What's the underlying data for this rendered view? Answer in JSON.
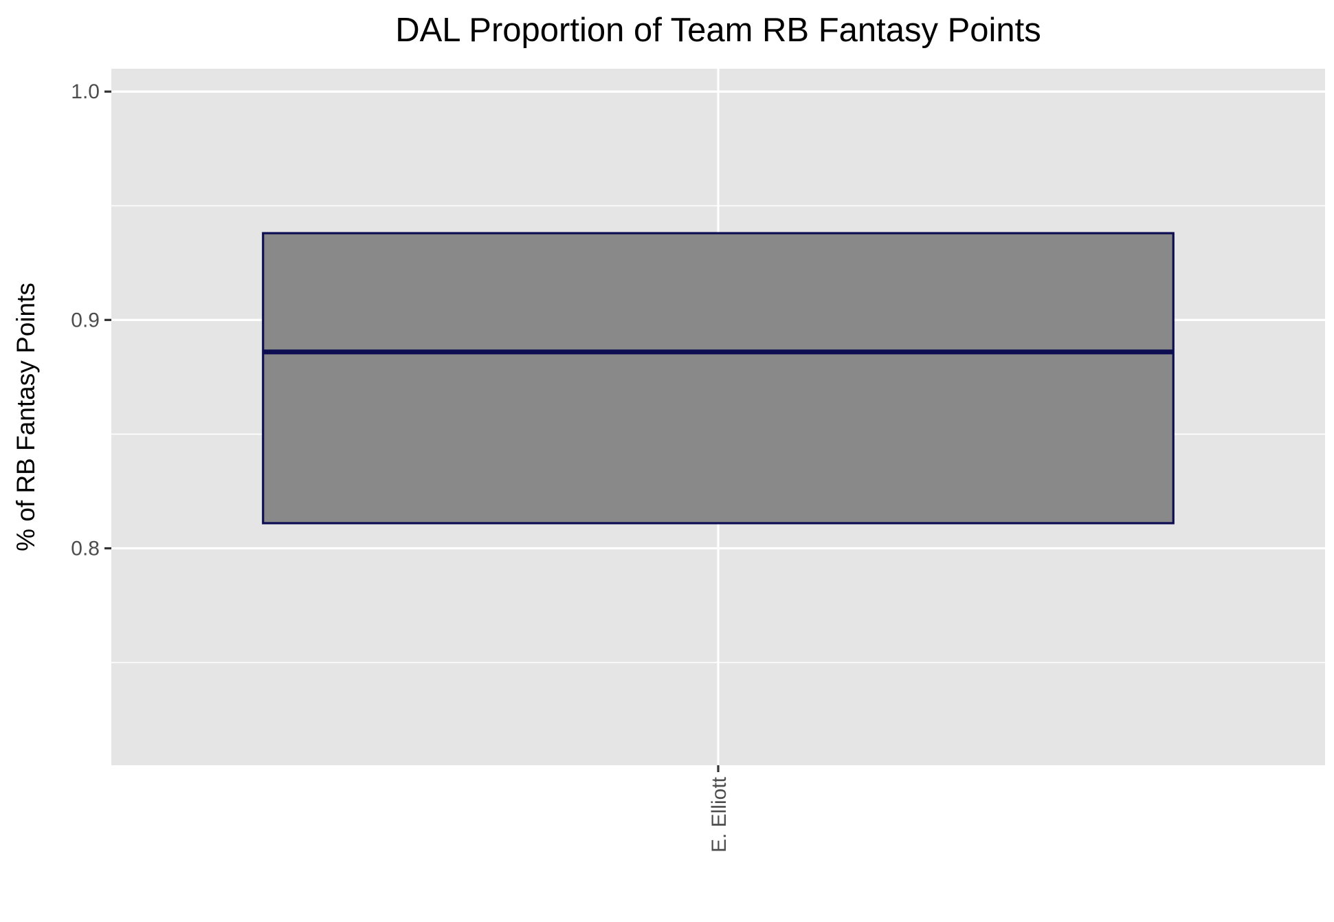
{
  "chart_data": {
    "type": "boxplot",
    "title": "DAL Proportion of Team RB Fantasy Points",
    "xlabel": "",
    "ylabel": "% of RB Fantasy Points",
    "ylim": [
      0.705,
      1.01
    ],
    "y_ticks": [
      "0.8",
      "0.9",
      "1.0"
    ],
    "y_tick_values": [
      0.8,
      0.9,
      1.0
    ],
    "y_minor_grid": [
      0.75,
      0.85,
      0.95
    ],
    "grid": true,
    "categories": [
      "E. Elliott"
    ],
    "boxes": [
      {
        "category": "E. Elliott",
        "q1": 0.811,
        "median": 0.886,
        "q3": 0.938
      }
    ],
    "colors": {
      "panel_background": "#e5e5e5",
      "grid": "#ffffff",
      "box_fill": "#898989",
      "box_outline": "#0d0d52",
      "tick_mark": "#333333"
    }
  }
}
